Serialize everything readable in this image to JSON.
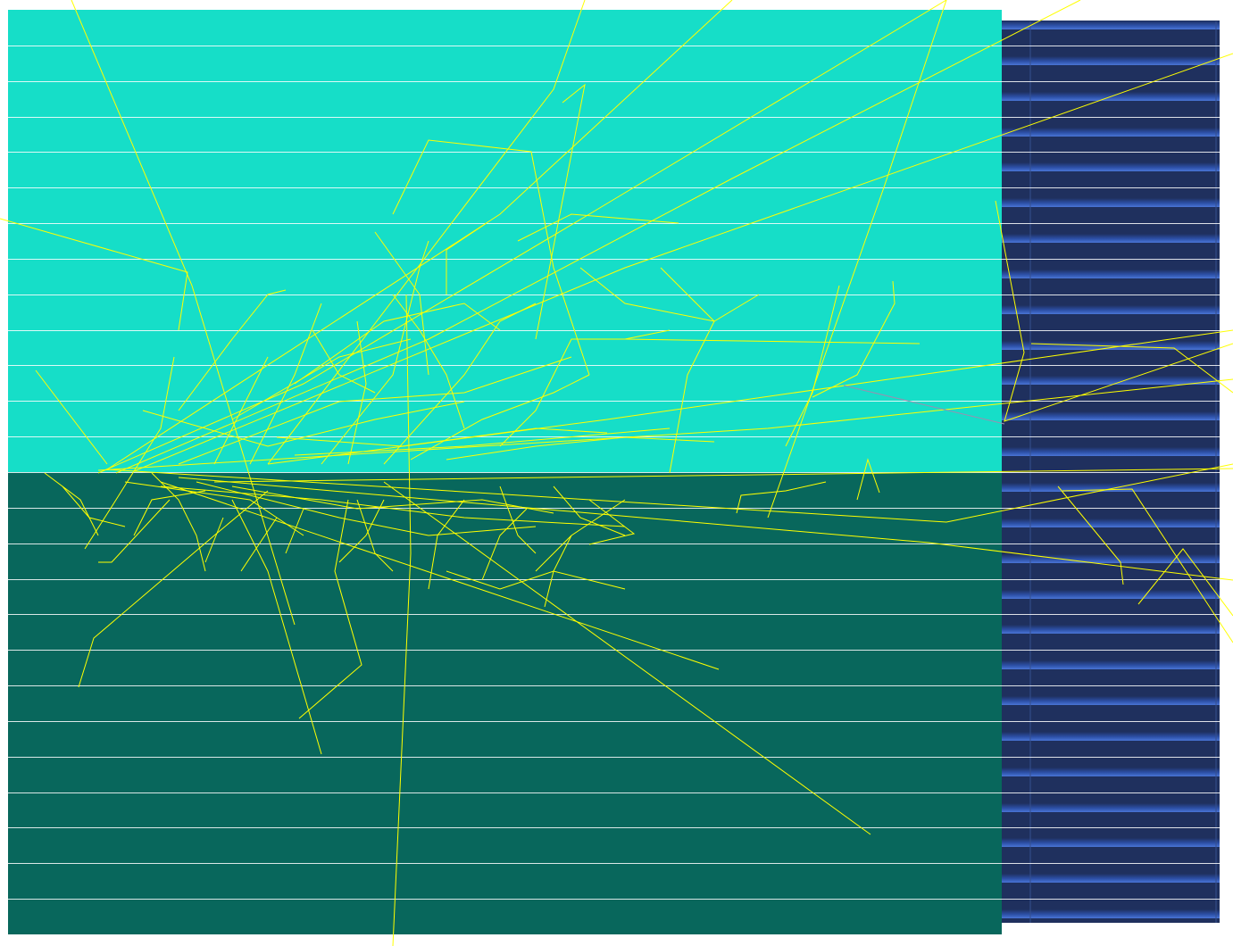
{
  "scene": {
    "type": "particle-track-visualization",
    "colors": {
      "background": "#ffffff",
      "upper_block": "#16dec8",
      "lower_block": "#08675c",
      "side_panel": "#1f305e",
      "side_panel_highlight": "#4a75d6",
      "slice_lines": "#ffffff",
      "tracks": "#ffff00",
      "secondary_track": "#9a8fb0"
    },
    "slice_count": 26
  }
}
